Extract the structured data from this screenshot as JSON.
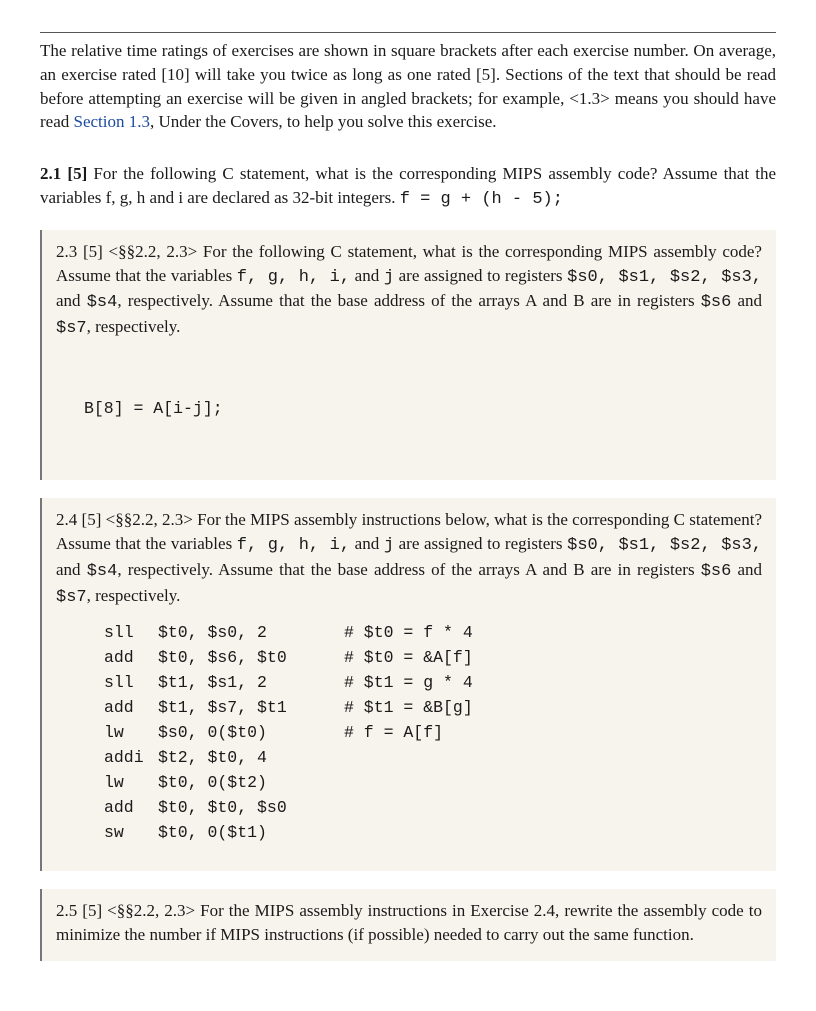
{
  "intro": {
    "line1": "The relative time ratings of exercises are shown in square brackets after each exercise number. On average, an exercise rated [10] will take you twice as long as one rated [5]. Sections of the text that should be read before attempting an exercise will be given in angled brackets; for example, <1.3> means you should have read ",
    "link": "Section 1.3",
    "line2": ", Under the Covers, to help you solve this exercise."
  },
  "q21": {
    "num": "2.1",
    "rating": "[5]",
    "text": " For the following C statement, what is the corresponding MIPS assembly code? Assume that the variables f, g, h and i are declared as 32-bit integers.  ",
    "code": "f = g + (h - 5);"
  },
  "q23": {
    "num": "2.3",
    "rating": " [5]",
    "prereq": " <§§2.2, 2.3>",
    "text1": " For the following C statement, what is the corresponding MIPS assembly code? Assume that the variables ",
    "vars": "f, g, h, i,",
    "text2": " and ",
    "varj": "j",
    "text3": " are assigned to registers ",
    "regs": "$s0, $s1, $s2, $s3,",
    "text4": " and ",
    "reg4": "$s4",
    "text5": ", respectively. Assume that the base address of the arrays A and B are in registers ",
    "reg6": "$s6",
    "text6": " and ",
    "reg7": "$s7",
    "text7": ", respectively.",
    "code": "B[8] = A[i-j];"
  },
  "q24": {
    "num": "2.4",
    "rating": " [5]",
    "prereq": " <§§2.2, 2.3>",
    "text1": " For the MIPS assembly instructions below, what is the corresponding C statement? Assume that the variables ",
    "vars": "f, g, h, i,",
    "text2": " and ",
    "varj": "j",
    "text3": " are assigned to registers ",
    "regs": "$s0, $s1, $s2, $s3,",
    "text4": " and ",
    "reg4": "$s4",
    "text5": ", respectively. Assume that the base address of the arrays A and B are in registers ",
    "reg6": "$s6",
    "text6": " and ",
    "reg7": "$s7",
    "text7": ", respectively.",
    "asm": [
      {
        "op": "sll",
        "args": "$t0, $s0, 2",
        "c": "# $t0 = f * 4"
      },
      {
        "op": "add",
        "args": "$t0, $s6, $t0",
        "c": "# $t0 = &A[f]"
      },
      {
        "op": "sll",
        "args": "$t1, $s1, 2",
        "c": "# $t1 = g * 4"
      },
      {
        "op": "add",
        "args": "$t1, $s7, $t1",
        "c": "# $t1 = &B[g]"
      },
      {
        "op": "lw",
        "args": "$s0, 0($t0)",
        "c": "# f = A[f]"
      },
      {
        "op": "addi",
        "args": "$t2, $t0, 4",
        "c": ""
      },
      {
        "op": "lw",
        "args": "$t0, 0($t2)",
        "c": ""
      },
      {
        "op": "add",
        "args": "$t0, $t0, $s0",
        "c": ""
      },
      {
        "op": "sw",
        "args": "$t0, 0($t1)",
        "c": ""
      }
    ]
  },
  "q25": {
    "num": "2.5",
    "rating": " [5]",
    "prereq": " <§§2.2, 2.3>",
    "text": " For the MIPS assembly instructions in Exercise 2.4, rewrite the assembly code to minimize the number if MIPS instructions (if possible) needed to carry out the same function."
  }
}
